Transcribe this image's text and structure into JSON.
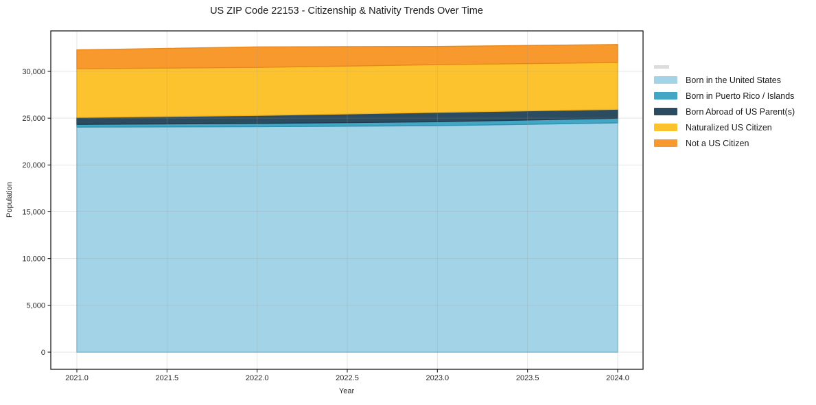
{
  "page": {
    "background": "#ffffff"
  },
  "chart_data": {
    "type": "area",
    "stacked": true,
    "title": "US ZIP Code 22153 - Citizenship & Nativity Trends Over Time",
    "xlabel": "Year",
    "ylabel": "Population",
    "x": [
      2021,
      2022,
      2023,
      2024
    ],
    "series": [
      {
        "name": "Born in the United States",
        "values": [
          24050,
          24100,
          24200,
          24500
        ],
        "color": "#a3d3e7",
        "edge": "#7cbeda"
      },
      {
        "name": "Born in Puerto Rico / Islands",
        "values": [
          290,
          340,
          420,
          500
        ],
        "color": "#44a6c5",
        "edge": "#2e92b2"
      },
      {
        "name": "Born Abroad of US Parent(s)",
        "values": [
          740,
          850,
          1000,
          950
        ],
        "color": "#2b4c60",
        "edge": "#1f3a4b"
      },
      {
        "name": "Naturalized US Citizen",
        "values": [
          5200,
          5140,
          5100,
          5000
        ],
        "color": "#fdc32e",
        "edge": "#edb01c"
      },
      {
        "name": "Not a US Citizen",
        "values": [
          2020,
          2190,
          1940,
          1920
        ],
        "color": "#f8992e",
        "edge": "#e8871d"
      }
    ],
    "xticks": [
      2021.0,
      2021.5,
      2022.0,
      2022.5,
      2023.0,
      2023.5,
      2024.0
    ],
    "xtick_labels": [
      "2021.0",
      "2021.5",
      "2022.0",
      "2022.5",
      "2023.0",
      "2023.5",
      "2024.0"
    ],
    "yticks": [
      0,
      5000,
      10000,
      15000,
      20000,
      25000,
      30000
    ],
    "ytick_labels": [
      "0",
      "5,000",
      "10,000",
      "15,000",
      "20,000",
      "25,000",
      "30,000"
    ],
    "xlim": [
      2020.86,
      2024.14
    ],
    "ylim": [
      0,
      34300
    ],
    "grid": true,
    "legend_position": "right",
    "colors": {
      "spine": "#1a1a1a",
      "tick_text": "#262626",
      "grid": "#999999"
    }
  }
}
